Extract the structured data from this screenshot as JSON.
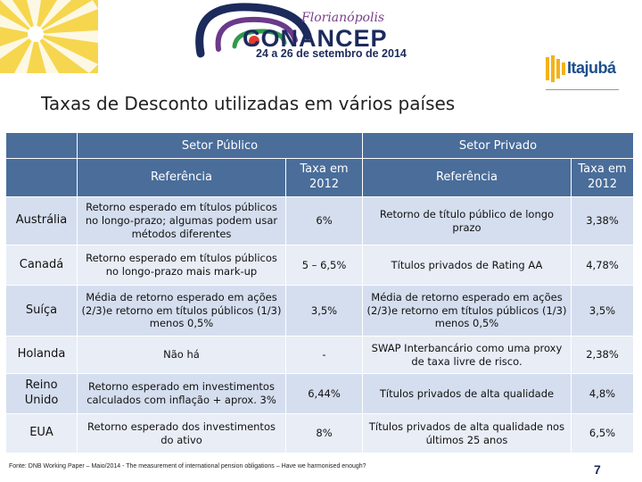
{
  "conference": {
    "city": "Florianópolis",
    "name": "CONANCEP",
    "dates": "24 a 26 de setembro de 2014"
  },
  "sponsor": {
    "name": "Itajubá"
  },
  "slide": {
    "title": "Taxas de Desconto utilizadas em vários países",
    "page_number": "7",
    "footnote": "Fonte: DNB Working Paper – Maio/2014 - The measurement of international pension obligations – Have we harmonised enough?"
  },
  "table": {
    "group_headers": {
      "public": "Setor Público",
      "private": "Setor Privado"
    },
    "column_headers": {
      "public_reference": "Referência",
      "public_rate": "Taxa em 2012",
      "private_reference": "Referência",
      "private_rate": "Taxa em 2012"
    },
    "rows": [
      {
        "country": "Austrália",
        "public_ref": "Retorno esperado em títulos públicos no longo-prazo; algumas podem usar métodos diferentes",
        "public_rate": "6%",
        "private_ref": "Retorno de título público de longo prazo",
        "private_rate": "3,38%"
      },
      {
        "country": "Canadá",
        "public_ref": "Retorno esperado em títulos públicos no longo-prazo mais mark-up",
        "public_rate": "5 – 6,5%",
        "private_ref": "Títulos privados de Rating AA",
        "private_rate": "4,78%"
      },
      {
        "country": "Suíça",
        "public_ref": "Média de retorno esperado em ações (2/3)e retorno em títulos públicos (1/3) menos 0,5%",
        "public_rate": "3,5%",
        "private_ref": "Média de retorno esperado em ações (2/3)e retorno em títulos públicos (1/3) menos 0,5%",
        "private_rate": "3,5%"
      },
      {
        "country": "Holanda",
        "public_ref": "Não há",
        "public_rate": "-",
        "private_ref": "SWAP Interbancário como uma proxy de taxa livre de risco.",
        "private_rate": "2,38%"
      },
      {
        "country": "Reino Unido",
        "public_ref": "Retorno esperado em investimentos calculados com inflação + aprox. 3%",
        "public_rate": "6,44%",
        "private_ref": "Títulos privados de alta qualidade",
        "private_rate": "4,8%"
      },
      {
        "country": "EUA",
        "public_ref": "Retorno esperado dos investimentos do ativo",
        "public_rate": "8%",
        "private_ref": "Títulos privados de alta qualidade nos últimos 25 anos",
        "private_rate": "6,5%"
      }
    ]
  },
  "colors": {
    "header_blue": "#4a6d9a",
    "row_odd": "#d5deee",
    "row_even": "#e8edf6",
    "brand_navy": "#1c2a5c",
    "starburst_yellow": "#f3c623"
  }
}
